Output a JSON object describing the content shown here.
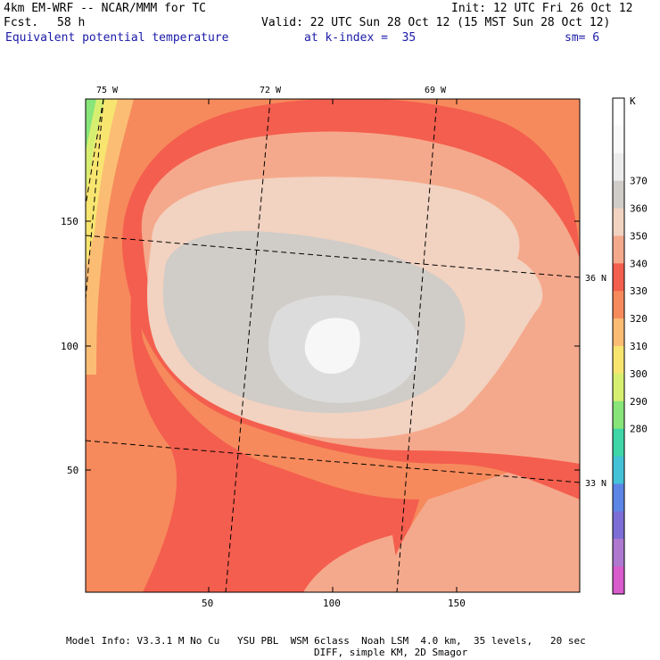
{
  "header": {
    "model_line": "4km EM-WRF -- NCAR/MMM for TC",
    "fcst_label": "Fcst.",
    "fcst_value": "58 h",
    "init_line": "Init: 12 UTC Fri 26 Oct 12",
    "valid_line": "Valid: 22 UTC Sun 28 Oct 12 (15 MST Sun 28 Oct 12)",
    "field_name": "Equivalent potential temperature",
    "level_label": "at k-index =  35",
    "smoothing": "sm= 6"
  },
  "map": {
    "top_lon_labels": [
      "75 W",
      "72 W",
      "69 W"
    ],
    "right_lat_labels": [
      "36 N",
      "33 N"
    ],
    "x_ticks": [
      "50",
      "100",
      "150"
    ],
    "y_ticks": [
      "150",
      "100",
      "50"
    ]
  },
  "colorbar": {
    "unit": "K",
    "labels": [
      "370",
      "360",
      "350",
      "340",
      "330",
      "320",
      "310",
      "300",
      "290",
      "280"
    ],
    "colors": [
      "#ffffff",
      "#f9f9f9",
      "#ececec",
      "#d0ccc8",
      "#f2d2c0",
      "#f5a98c",
      "#f45e4e",
      "#f68a5c",
      "#fbbd74",
      "#f8e570",
      "#d7ef70",
      "#88e57a",
      "#3ed6a6",
      "#44c2d8",
      "#5c86e6",
      "#7c6ed6",
      "#ad78ce",
      "#d85ccc"
    ]
  },
  "footer": {
    "line1": "Model Info: V3.3.1 M No Cu   YSU PBL  WSM 6class  Noah LSM  4.0 km,  35 levels,   20 sec",
    "line2": "DIFF, simple KM, 2D Smagor"
  }
}
